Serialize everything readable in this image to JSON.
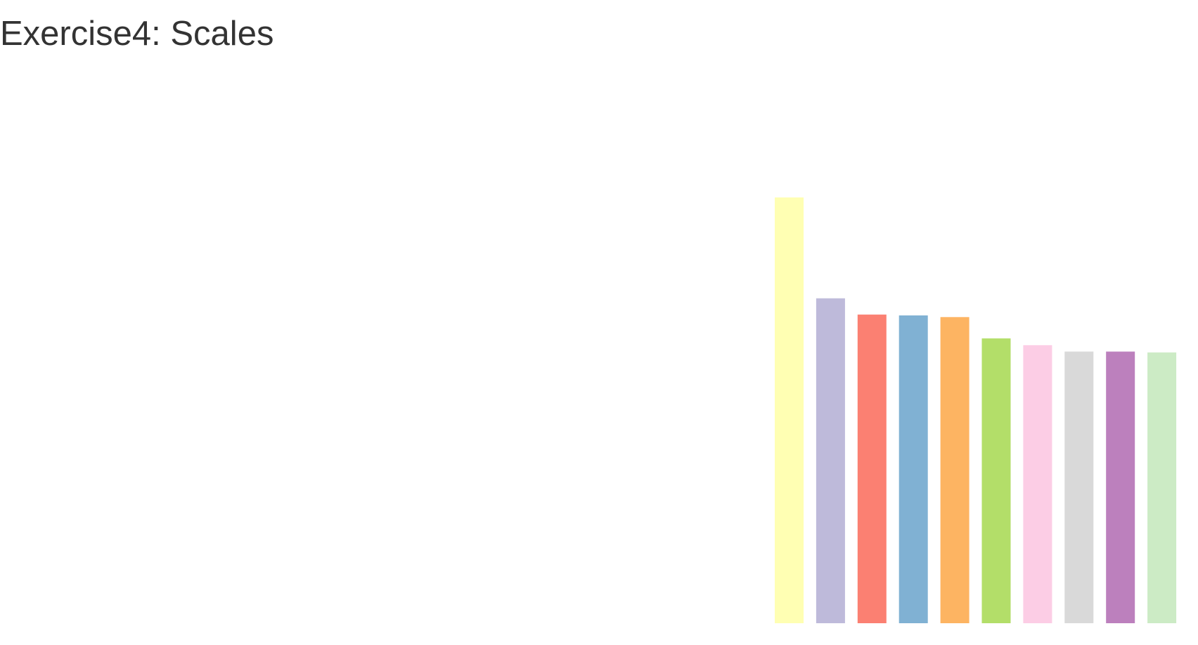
{
  "page": {
    "title": "Exercise4: Scales"
  },
  "chart_data": {
    "type": "bar",
    "title": "Exercise4: Scales",
    "xlabel": "",
    "ylabel": "",
    "axes_visible": false,
    "grid": false,
    "legend": "none",
    "categories": [
      "",
      "",
      "",
      "",
      "",
      "",
      "",
      "",
      "",
      ""
    ],
    "values": [
      100,
      76.3,
      72.5,
      72.3,
      71.9,
      66.9,
      65.3,
      63.8,
      63.8,
      63.6
    ],
    "colors": [
      "#ffffb3",
      "#bebada",
      "#fb8072",
      "#80b1d3",
      "#fdb462",
      "#b3de69",
      "#fccde5",
      "#d9d9d9",
      "#bc80bd",
      "#ccebc5"
    ],
    "ylim": [
      0,
      100
    ]
  }
}
